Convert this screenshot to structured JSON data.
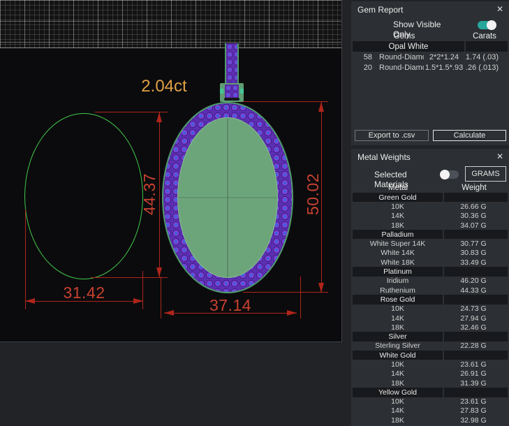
{
  "viewport": {
    "carat_label": "2.04ct",
    "dimensions": {
      "outline_height": "44.37",
      "outline_width": "31.42",
      "pendant_height": "50.02",
      "pendant_width": "37.14"
    },
    "colors": {
      "dimension_line": "#ae251b",
      "dimension_text": "#c94130",
      "carat_text": "#dfa144",
      "wire_green": "#41c94a",
      "pendant_face": "#6da57a",
      "gem_purple": "#7b41d6",
      "gem_blue": "#3b63d9",
      "bail_green": "#4f9b6b"
    }
  },
  "icons": {
    "close_glyph": "✕"
  },
  "gem_report": {
    "title": "Gem Report",
    "toggle_label": "Show Visible Only",
    "toggle_on": true,
    "columns": {
      "gems": "Gems",
      "carats": "Carats"
    },
    "group": "Opal White",
    "rows": [
      {
        "count": "58",
        "name": "Round-Diamo...",
        "size": "2*2*1.24",
        "carats": "1.74 (.03)"
      },
      {
        "count": "20",
        "name": "Round-Diamo...",
        "size": "1.5*1.5*.93",
        "carats": ".26 (.013)"
      }
    ],
    "buttons": {
      "export": "Export to .csv",
      "calculate": "Calculate"
    }
  },
  "metal_weights": {
    "title": "Metal Weights",
    "toggle_label": "Selected Materials",
    "toggle_on": false,
    "unit_button": "GRAMS",
    "columns": {
      "metal": "Metal",
      "weight": "Weight"
    },
    "groups": [
      {
        "name": "Green Gold",
        "rows": [
          [
            "10K",
            "26.66 G"
          ],
          [
            "14K",
            "30.36 G"
          ],
          [
            "18K",
            "34.07 G"
          ]
        ]
      },
      {
        "name": "Palladium",
        "rows": [
          [
            "White Super 14K",
            "30.77 G"
          ],
          [
            "White 14K",
            "30.83 G"
          ],
          [
            "White 18K",
            "33.49 G"
          ]
        ]
      },
      {
        "name": "Platinum",
        "rows": [
          [
            "Iridium",
            "46.20 G"
          ],
          [
            "Ruthenium",
            "44.33 G"
          ]
        ]
      },
      {
        "name": "Rose Gold",
        "rows": [
          [
            "10K",
            "24.73 G"
          ],
          [
            "14K",
            "27.94 G"
          ],
          [
            "18K",
            "32.46 G"
          ]
        ]
      },
      {
        "name": "Silver",
        "rows": [
          [
            "Sterling Silver",
            "22.28 G"
          ]
        ]
      },
      {
        "name": "White Gold",
        "rows": [
          [
            "10K",
            "23.61 G"
          ],
          [
            "14K",
            "26.91 G"
          ],
          [
            "18K",
            "31.39 G"
          ]
        ]
      },
      {
        "name": "Yellow Gold",
        "rows": [
          [
            "10K",
            "23.61 G"
          ],
          [
            "14K",
            "27.83 G"
          ],
          [
            "18K",
            "32.98 G"
          ]
        ]
      }
    ]
  }
}
